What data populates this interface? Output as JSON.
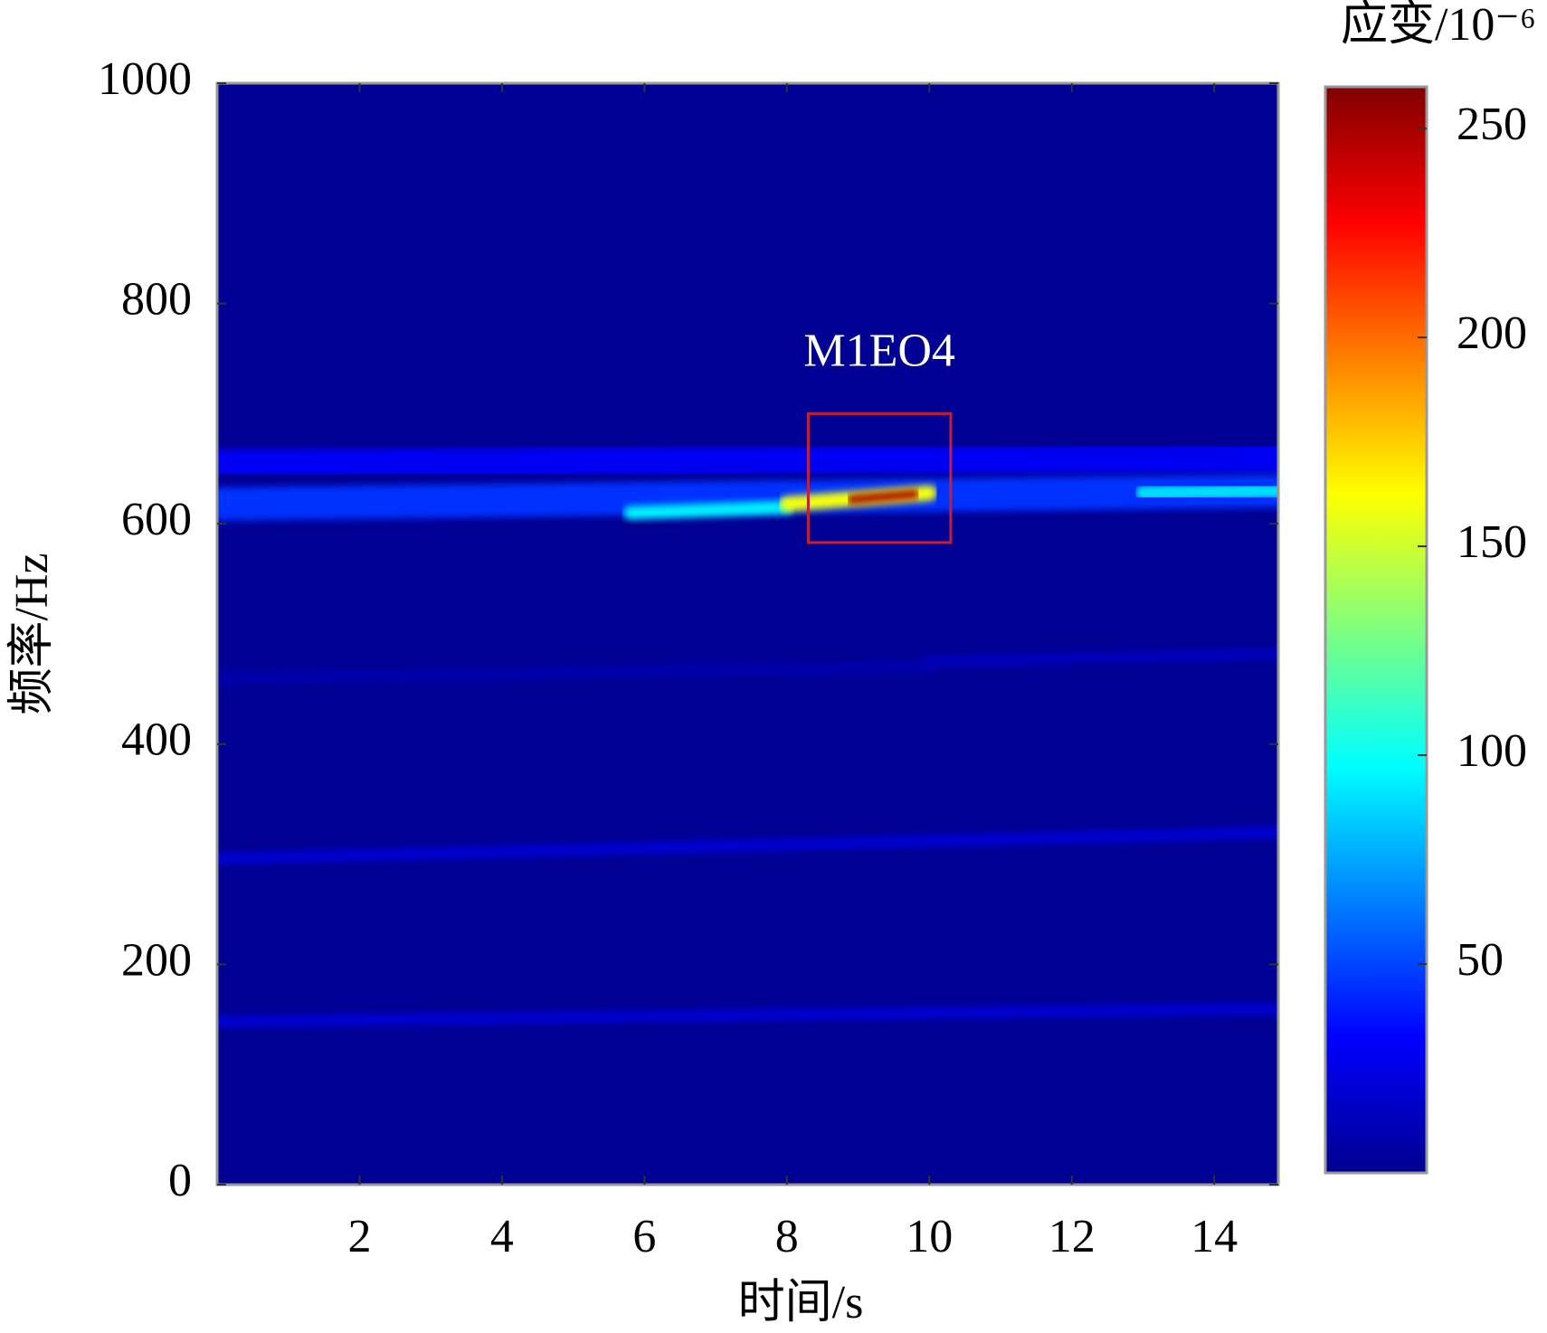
{
  "chart_data": {
    "type": "spectrogram",
    "xlabel": "时间/s",
    "ylabel": "频率/Hz",
    "colorbar_label": "应变/10⁻⁶",
    "xlim": [
      0,
      14.9
    ],
    "xticks": [
      2,
      4,
      6,
      8,
      10,
      12,
      14
    ],
    "ylim": [
      0,
      1000
    ],
    "yticks": [
      0,
      200,
      400,
      600,
      800,
      1000
    ],
    "clim": [
      0,
      260
    ],
    "cticks": [
      50,
      100,
      150,
      200,
      250
    ],
    "colormap": "jet",
    "background_value": 5,
    "features": [
      {
        "t": [
          0,
          14.9
        ],
        "f": [
          655,
          660
        ],
        "width": 25,
        "value": 30
      },
      {
        "t": [
          0,
          14.9
        ],
        "f": [
          618,
          630
        ],
        "width": 30,
        "value": 45
      },
      {
        "t": [
          5.8,
          8
        ],
        "f": [
          610,
          615
        ],
        "width": 12,
        "value": 95
      },
      {
        "t": [
          8,
          10
        ],
        "f": [
          618,
          628
        ],
        "width": 14,
        "value": 160
      },
      {
        "t": [
          8.9,
          9.8
        ],
        "f": [
          622,
          627
        ],
        "width": 8,
        "value": 250
      },
      {
        "t": [
          13,
          14.9
        ],
        "f": [
          628,
          630
        ],
        "width": 14,
        "value": 90
      },
      {
        "t": [
          0,
          14.9
        ],
        "f": [
          296,
          320
        ],
        "width": 10,
        "value": 22
      },
      {
        "t": [
          0,
          14.9
        ],
        "f": [
          148,
          160
        ],
        "width": 10,
        "value": 22
      },
      {
        "t": [
          0,
          10
        ],
        "f": [
          460,
          470
        ],
        "width": 10,
        "value": 12
      },
      {
        "t": [
          10,
          14.9
        ],
        "f": [
          475,
          482
        ],
        "width": 10,
        "value": 16
      }
    ],
    "annotation": {
      "text": "M1EO4",
      "t": [
        8.3,
        10.3
      ],
      "f": [
        583,
        700
      ],
      "color": "#c0203a"
    }
  }
}
